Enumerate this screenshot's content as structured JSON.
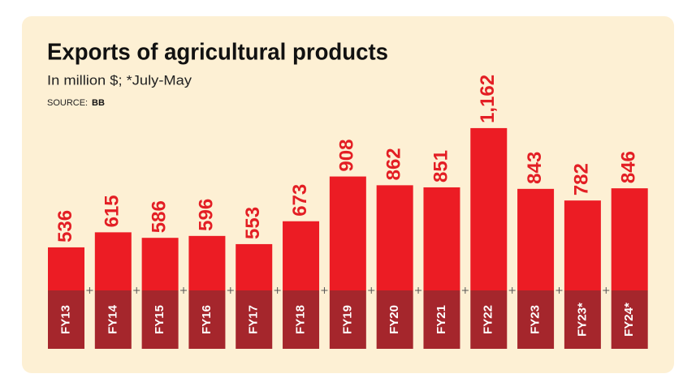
{
  "chart_data": {
    "type": "bar",
    "title": "Exports of agricultural products",
    "subtitle": "In million $; *July-May",
    "source_label": "SOURCE:",
    "source": "BB",
    "categories": [
      "FY13",
      "FY14",
      "FY15",
      "FY16",
      "FY17",
      "FY18",
      "FY19",
      "FY20",
      "FY21",
      "FY22",
      "FY23",
      "FY23*",
      "FY24*"
    ],
    "values": [
      536,
      615,
      586,
      596,
      553,
      673,
      908,
      862,
      851,
      1162,
      843,
      782,
      846
    ],
    "value_labels": [
      "536",
      "615",
      "586",
      "596",
      "553",
      "673",
      "908",
      "862",
      "851",
      "1,162",
      "843",
      "782",
      "846"
    ],
    "color": "#ec1c24",
    "label_color": "#e31e24",
    "category_box_color": "#a5262c",
    "ylim": [
      310,
      1200
    ]
  }
}
